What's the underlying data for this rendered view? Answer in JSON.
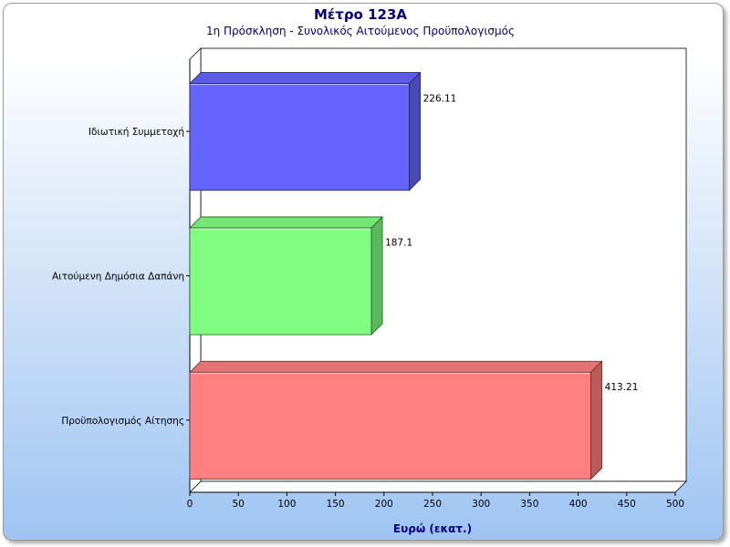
{
  "chart_data": {
    "type": "bar",
    "orientation": "horizontal",
    "title": "Μέτρο 123Α",
    "subtitle": "1η Πρόσκληση - Συνολικός Αιτούμενος Προϋπολογισμός",
    "xlabel": "Ευρώ (εκατ.)",
    "ylabel": "",
    "categories": [
      "Ιδιωτική Συμμετοχή",
      "Αιτούμενη Δημόσια Δαπάνη",
      "Προϋπολογισμός Αίτησης"
    ],
    "values": [
      226.11,
      187.1,
      413.21
    ],
    "value_labels": [
      "226.11",
      "187.1",
      "413.21"
    ],
    "colors": [
      "#6666ff",
      "#80ff80",
      "#ff8080"
    ],
    "xlim": [
      0,
      500
    ],
    "ticks": [
      0,
      50,
      100,
      150,
      200,
      250,
      300,
      350,
      400,
      450,
      500
    ],
    "grid": false,
    "style": "3d"
  }
}
